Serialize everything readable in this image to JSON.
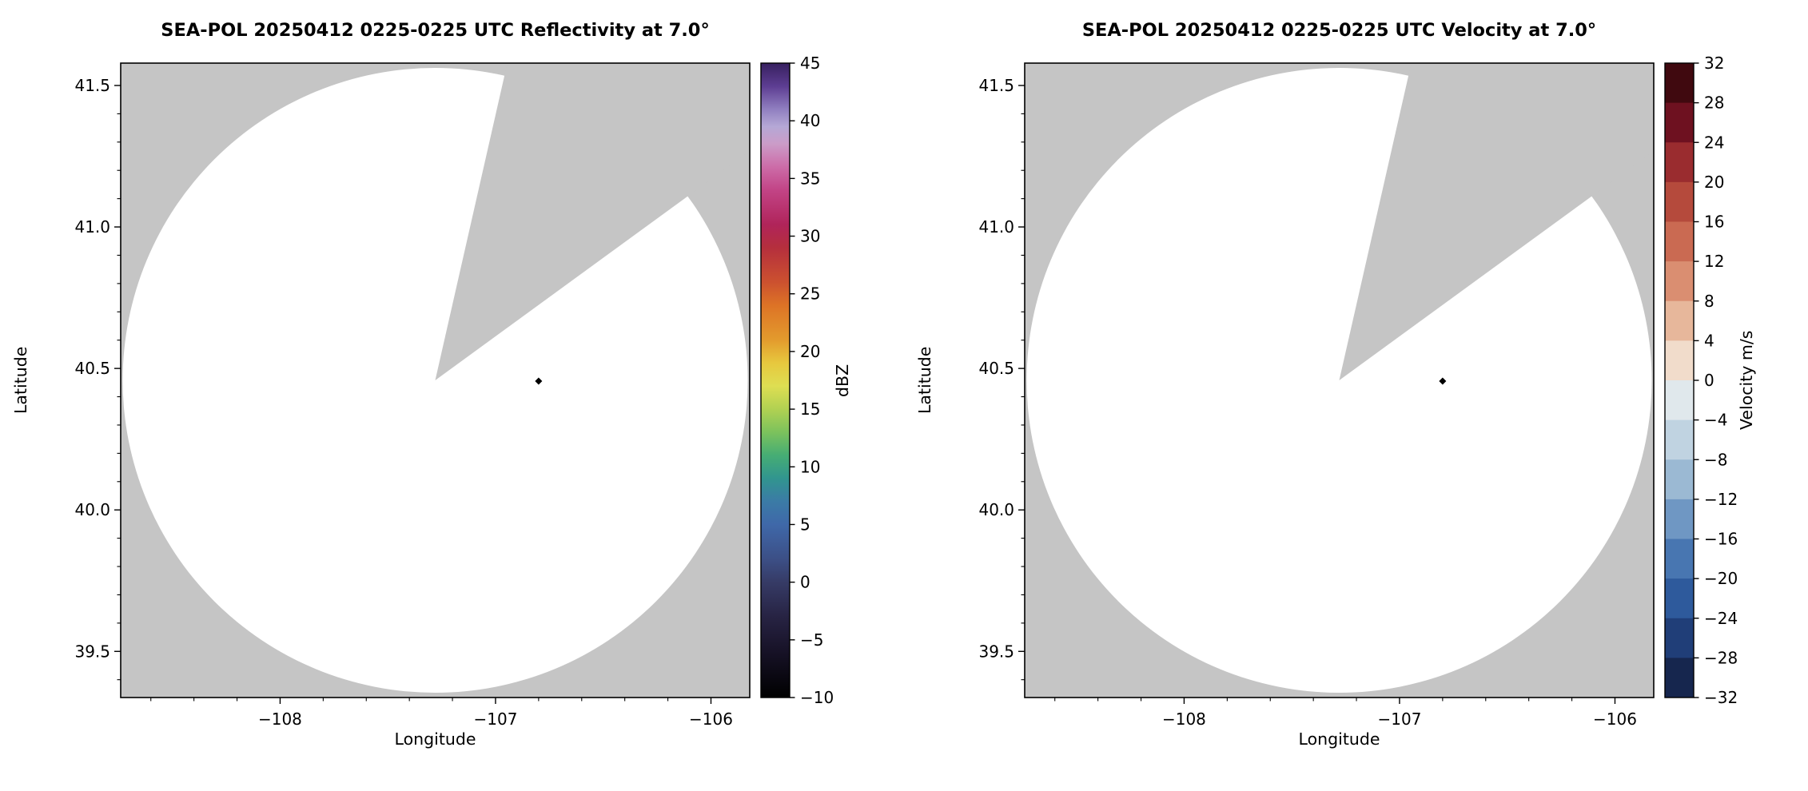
{
  "page": {
    "background": "#ffffff"
  },
  "chart_data": [
    {
      "type": "heatmap",
      "kind": "radar-ppi",
      "title": "SEA-POL 20250412 0225-0225 UTC Reflectivity at 7.0°",
      "xlabel": "Longitude",
      "ylabel": "Latitude",
      "xlim": [
        -108.74,
        -105.82
      ],
      "ylim": [
        39.337,
        41.579
      ],
      "xticks": [
        -108,
        -107,
        -106
      ],
      "xtick_labels": [
        "−108",
        "−107",
        "−106"
      ],
      "yticks": [
        39.5,
        40.0,
        40.5,
        41.0,
        41.5
      ],
      "ytick_labels": [
        "39.5",
        "40.0",
        "40.5",
        "41.0",
        "41.5"
      ],
      "xminor_step": 0.2,
      "yminor_step": 0.1,
      "background_color": "#c5c5c5",
      "grid": false,
      "scan": {
        "center_lon": -107.28,
        "center_lat": 40.458,
        "radius_lat_deg": 1.104,
        "fill": "#ffffff",
        "missing_sector_azimuth_deg": [
          12.8,
          53.9
        ]
      },
      "marker": {
        "lon": -106.8,
        "lat": 40.455,
        "shape": "diamond",
        "color": "#000000"
      },
      "colorbar": {
        "label": "dBZ",
        "min": -10,
        "max": 45,
        "style": "gradient",
        "ticks": [
          45,
          40,
          35,
          30,
          25,
          20,
          15,
          10,
          5,
          0,
          -5,
          -10
        ],
        "tick_labels": [
          "45",
          "40",
          "35",
          "30",
          "25",
          "20",
          "15",
          "10",
          "5",
          "0",
          "−5",
          "−10"
        ],
        "stops": [
          {
            "v": 45,
            "c": "#372060"
          },
          {
            "v": 43,
            "c": "#5d3d92"
          },
          {
            "v": 41,
            "c": "#907fc0"
          },
          {
            "v": 39.5,
            "c": "#b5a8d6"
          },
          {
            "v": 38,
            "c": "#cb9cc8"
          },
          {
            "v": 36,
            "c": "#cc6ca8"
          },
          {
            "v": 34,
            "c": "#c24486"
          },
          {
            "v": 31,
            "c": "#b0245a"
          },
          {
            "v": 29,
            "c": "#b52f3d"
          },
          {
            "v": 26,
            "c": "#cc512f"
          },
          {
            "v": 24,
            "c": "#dd7326"
          },
          {
            "v": 21,
            "c": "#e39b2d"
          },
          {
            "v": 19,
            "c": "#e7c83e"
          },
          {
            "v": 17,
            "c": "#dede52"
          },
          {
            "v": 15,
            "c": "#b1d152"
          },
          {
            "v": 13,
            "c": "#7cc25c"
          },
          {
            "v": 11,
            "c": "#46ad74"
          },
          {
            "v": 9,
            "c": "#31958f"
          },
          {
            "v": 7,
            "c": "#3b7ba6"
          },
          {
            "v": 5,
            "c": "#3f68a9"
          },
          {
            "v": 2,
            "c": "#3c4f86"
          },
          {
            "v": 0,
            "c": "#363b66"
          },
          {
            "v": -3,
            "c": "#272343"
          },
          {
            "v": -6,
            "c": "#171227"
          },
          {
            "v": -10,
            "c": "#000000"
          }
        ]
      }
    },
    {
      "type": "heatmap",
      "kind": "radar-ppi",
      "title": "SEA-POL 20250412 0225-0225 UTC Velocity at 7.0°",
      "xlabel": "Longitude",
      "ylabel": "Latitude",
      "xlim": [
        -108.74,
        -105.82
      ],
      "ylim": [
        39.337,
        41.579
      ],
      "xticks": [
        -108,
        -107,
        -106
      ],
      "xtick_labels": [
        "−108",
        "−107",
        "−106"
      ],
      "yticks": [
        39.5,
        40.0,
        40.5,
        41.0,
        41.5
      ],
      "ytick_labels": [
        "39.5",
        "40.0",
        "40.5",
        "41.0",
        "41.5"
      ],
      "xminor_step": 0.2,
      "yminor_step": 0.1,
      "background_color": "#c5c5c5",
      "grid": false,
      "scan": {
        "center_lon": -107.28,
        "center_lat": 40.458,
        "radius_lat_deg": 1.104,
        "fill": "#ffffff",
        "missing_sector_azimuth_deg": [
          12.8,
          53.9
        ]
      },
      "marker": {
        "lon": -106.8,
        "lat": 40.455,
        "shape": "diamond",
        "color": "#000000"
      },
      "colorbar": {
        "label": "Velocity m/s",
        "min": -32,
        "max": 32,
        "style": "discrete",
        "ticks": [
          32,
          28,
          24,
          20,
          16,
          12,
          8,
          4,
          0,
          -4,
          -8,
          -12,
          -16,
          -20,
          -24,
          -28,
          -32
        ],
        "tick_labels": [
          "32",
          "28",
          "24",
          "20",
          "16",
          "12",
          "8",
          "4",
          "0",
          "−4",
          "−8",
          "−12",
          "−16",
          "−20",
          "−24",
          "−28",
          "−32"
        ],
        "bands": [
          {
            "range": [
              28,
              32
            ],
            "c": "#40090f"
          },
          {
            "range": [
              24,
              28
            ],
            "c": "#6e1120"
          },
          {
            "range": [
              20,
              24
            ],
            "c": "#9a2c2f"
          },
          {
            "range": [
              16,
              20
            ],
            "c": "#b54a3c"
          },
          {
            "range": [
              12,
              16
            ],
            "c": "#ca6a52"
          },
          {
            "range": [
              8,
              12
            ],
            "c": "#da8e71"
          },
          {
            "range": [
              4,
              8
            ],
            "c": "#e7b79b"
          },
          {
            "range": [
              0,
              4
            ],
            "c": "#f1dccb"
          },
          {
            "range": [
              -4,
              0
            ],
            "c": "#e0e8ec"
          },
          {
            "range": [
              -8,
              -4
            ],
            "c": "#c0d3e1"
          },
          {
            "range": [
              -12,
              -8
            ],
            "c": "#9bb9d3"
          },
          {
            "range": [
              -16,
              -12
            ],
            "c": "#6f97c3"
          },
          {
            "range": [
              -20,
              -16
            ],
            "c": "#4876b1"
          },
          {
            "range": [
              -24,
              -20
            ],
            "c": "#2e5a9c"
          },
          {
            "range": [
              -28,
              -24
            ],
            "c": "#203e78"
          },
          {
            "range": [
              -32,
              -28
            ],
            "c": "#16264e"
          }
        ]
      }
    }
  ]
}
